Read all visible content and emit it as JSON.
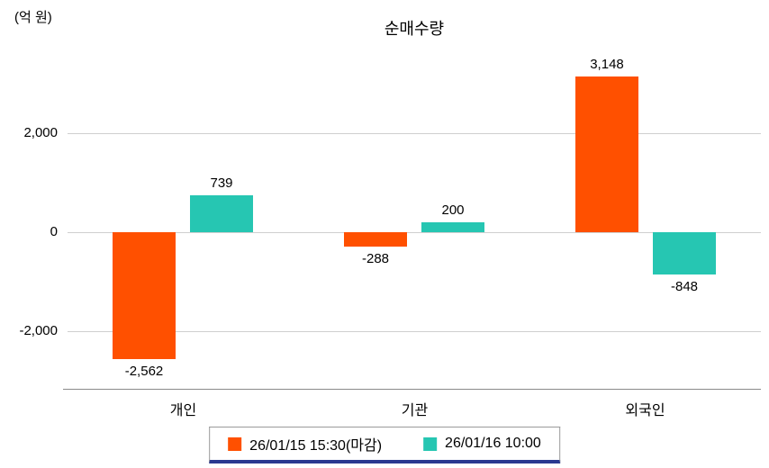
{
  "chart_data": {
    "type": "bar",
    "title": "순매수량",
    "ylabel": "(억 원)",
    "xlabel": "",
    "categories": [
      "개인",
      "기관",
      "외국인"
    ],
    "series": [
      {
        "name": "26/01/15 15:30(마감)",
        "color": "#ff5000",
        "values": [
          -2562,
          -288,
          3148
        ],
        "labels": [
          "-2,562",
          "-288",
          "3,148"
        ]
      },
      {
        "name": "26/01/16 10:00",
        "color": "#26c6b2",
        "values": [
          739,
          200,
          -848
        ],
        "labels": [
          "739",
          "200",
          "-848"
        ]
      }
    ],
    "ylim": [
      -3164,
      3691
    ],
    "yticks": [
      {
        "value": 2000,
        "label": "2,000"
      },
      {
        "value": 0,
        "label": "0"
      },
      {
        "value": -2000,
        "label": "-2,000"
      }
    ],
    "grid": true,
    "legend_position": "bottom"
  },
  "colors": {
    "gridline": "#cfcfcf",
    "axis_line": "#8a8a8a",
    "legend_border": "#9a9a9a",
    "legend_accent": "#2b3990",
    "text": "#000000"
  }
}
